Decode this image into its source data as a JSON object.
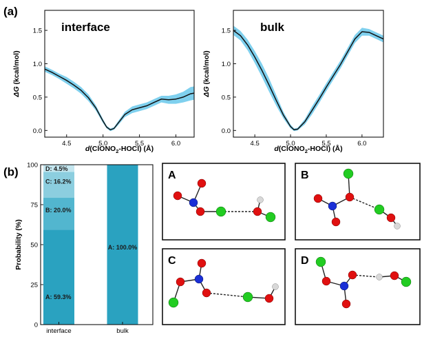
{
  "panels": {
    "a_label": "(a)",
    "b_label": "(b)"
  },
  "colors": {
    "curve": "#111111",
    "band": "#7fd0ee",
    "seg_A": "#2aa2c0",
    "seg_B": "#52b6cf",
    "seg_C": "#8ccedf",
    "seg_D": "#c4e6ef",
    "oxygen": "#e01010",
    "chlorine": "#22cc22",
    "nitrogen": "#1a2fd6",
    "hydrogen": "#d8d8d8"
  },
  "chart_data": [
    {
      "type": "line",
      "title": "interface",
      "xlabel_parts": [
        "d",
        "(ClONO",
        "2",
        "-HOCl) (Å)"
      ],
      "ylabel_parts": [
        "ΔG",
        " (kcal/mol)"
      ],
      "xlim": [
        4.2,
        6.25
      ],
      "ylim": [
        -0.1,
        1.8
      ],
      "xticks": [
        "4.5",
        "5.0",
        "5.5",
        "6.0"
      ],
      "yticks": [
        "0.0",
        "0.5",
        "1.0",
        "1.5"
      ],
      "series": [
        {
          "name": "ΔG",
          "x": [
            4.2,
            4.3,
            4.4,
            4.5,
            4.6,
            4.7,
            4.8,
            4.9,
            5.0,
            5.05,
            5.1,
            5.15,
            5.2,
            5.3,
            5.4,
            5.5,
            5.6,
            5.7,
            5.8,
            5.9,
            6.0,
            6.1,
            6.2,
            6.25
          ],
          "y": [
            0.92,
            0.87,
            0.81,
            0.75,
            0.68,
            0.6,
            0.49,
            0.34,
            0.14,
            0.05,
            0.01,
            0.03,
            0.1,
            0.24,
            0.31,
            0.34,
            0.37,
            0.42,
            0.47,
            0.46,
            0.47,
            0.5,
            0.55,
            0.56
          ],
          "err": [
            0.04,
            0.04,
            0.04,
            0.05,
            0.05,
            0.05,
            0.05,
            0.04,
            0.03,
            0.02,
            0.02,
            0.02,
            0.03,
            0.04,
            0.05,
            0.05,
            0.05,
            0.05,
            0.05,
            0.06,
            0.07,
            0.08,
            0.1,
            0.1
          ]
        }
      ]
    },
    {
      "type": "line",
      "title": "bulk",
      "xlabel_parts": [
        "d",
        "(ClONO",
        "2",
        "-HOCl) (Å)"
      ],
      "ylabel_parts": [
        "ΔG",
        " (kcal/mol)"
      ],
      "xlim": [
        4.2,
        6.3
      ],
      "ylim": [
        -0.1,
        1.8
      ],
      "xticks": [
        "4.5",
        "5.0",
        "5.5",
        "6.0"
      ],
      "yticks": [
        "0.0",
        "0.5",
        "1.0",
        "1.5"
      ],
      "series": [
        {
          "name": "ΔG",
          "x": [
            4.2,
            4.3,
            4.4,
            4.5,
            4.6,
            4.7,
            4.8,
            4.9,
            5.0,
            5.05,
            5.1,
            5.2,
            5.3,
            5.4,
            5.5,
            5.6,
            5.7,
            5.8,
            5.9,
            6.0,
            6.1,
            6.2,
            6.3
          ],
          "y": [
            1.5,
            1.42,
            1.28,
            1.1,
            0.9,
            0.68,
            0.45,
            0.23,
            0.06,
            0.01,
            0.02,
            0.13,
            0.3,
            0.47,
            0.65,
            0.82,
            0.99,
            1.18,
            1.37,
            1.48,
            1.47,
            1.42,
            1.37
          ],
          "err": [
            0.07,
            0.07,
            0.08,
            0.09,
            0.1,
            0.1,
            0.08,
            0.05,
            0.03,
            0.02,
            0.02,
            0.04,
            0.06,
            0.06,
            0.06,
            0.06,
            0.06,
            0.06,
            0.06,
            0.06,
            0.05,
            0.05,
            0.05
          ]
        }
      ]
    },
    {
      "type": "bar",
      "stacked": true,
      "categories": [
        "interface",
        "bulk"
      ],
      "ylabel": "Probability (%)",
      "ylim": [
        0,
        100
      ],
      "yticks": [
        "0",
        "25",
        "50",
        "75",
        "100"
      ],
      "series": [
        {
          "name": "A",
          "values": [
            59.3,
            100.0
          ],
          "labels": [
            "A: 59.3%",
            "A: 100.0%"
          ]
        },
        {
          "name": "B",
          "values": [
            20.0,
            0
          ],
          "labels": [
            "B: 20.0%",
            ""
          ]
        },
        {
          "name": "C",
          "values": [
            16.2,
            0
          ],
          "labels": [
            "C: 16.2%",
            ""
          ]
        },
        {
          "name": "D",
          "values": [
            4.5,
            0
          ],
          "labels": [
            "D: 4.5%",
            ""
          ]
        }
      ]
    }
  ],
  "structures": [
    {
      "label": "A"
    },
    {
      "label": "B"
    },
    {
      "label": "C"
    },
    {
      "label": "D"
    }
  ]
}
